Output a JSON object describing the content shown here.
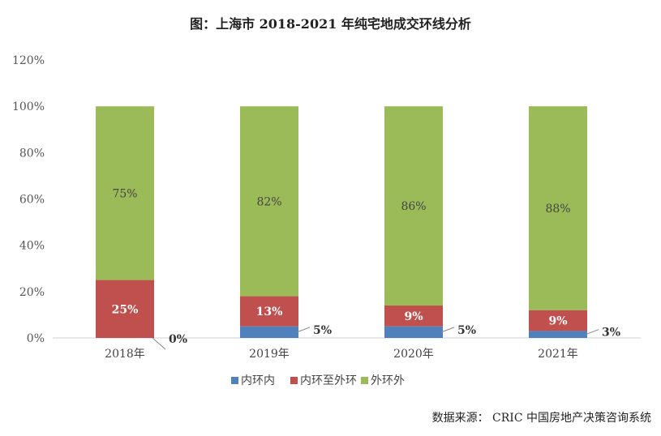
{
  "chart_data": {
    "type": "bar",
    "stacked": true,
    "title": "图：上海市 2018-2021 年纯宅地成交环线分析",
    "categories": [
      "2018年",
      "2019年",
      "2020年",
      "2021年"
    ],
    "series": [
      {
        "name": "内环内",
        "values": [
          0,
          5,
          5,
          3
        ],
        "color": "#4F81BD"
      },
      {
        "name": "内环至外环",
        "values": [
          25,
          13,
          9,
          9
        ],
        "color": "#C0504D"
      },
      {
        "name": "外环外",
        "values": [
          75,
          82,
          86,
          88
        ],
        "color": "#9BBB59"
      }
    ],
    "yticks": [
      "0%",
      "20%",
      "40%",
      "60%",
      "80%",
      "100%",
      "120%"
    ],
    "ylim": [
      0,
      120
    ],
    "unit": "%",
    "grid": false,
    "legend": "bottom"
  },
  "source": "数据来源：  CRIC 中国房地产决策咨询系统"
}
